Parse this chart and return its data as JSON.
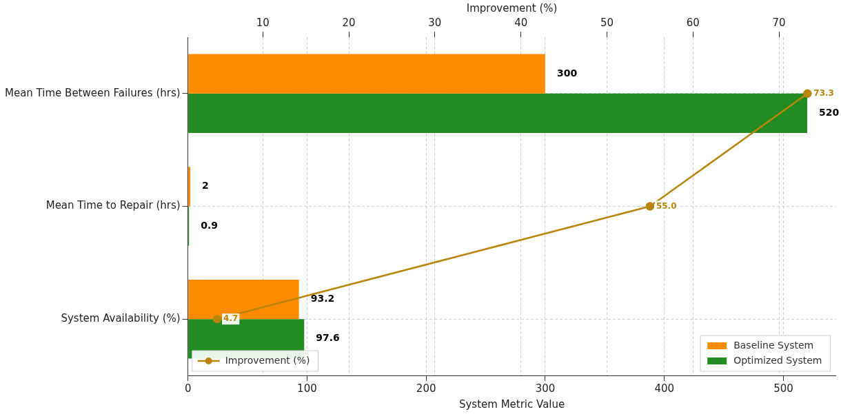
{
  "chart_data": {
    "type": "bar",
    "orientation": "horizontal",
    "xlabel": "System Metric Value",
    "x2label": "Improvement (%)",
    "categories": [
      "Mean Time Between Failures (hrs)",
      "Mean Time to Repair (hrs)",
      "System Availability (%)"
    ],
    "series": [
      {
        "name": "Baseline System",
        "color": "#ff8c00",
        "values": [
          300,
          2,
          93.2
        ],
        "value_labels": [
          "300",
          "2",
          "93.2"
        ]
      },
      {
        "name": "Optimized System",
        "color": "#228b22",
        "values": [
          520,
          0.9,
          97.6
        ],
        "value_labels": [
          "520",
          "0.9",
          "97.6"
        ]
      },
      {
        "name": "Improvement (%)",
        "type": "line",
        "axis": "x2",
        "color": "#b8860b",
        "values": [
          73.3,
          55.0,
          4.7
        ],
        "value_labels": [
          "73.3",
          "55.0",
          "4.7"
        ]
      }
    ],
    "xlim": [
      0,
      544
    ],
    "xticks": [
      0,
      100,
      200,
      300,
      400,
      500
    ],
    "x2lim": [
      1.3,
      76.6
    ],
    "x2ticks": [
      10,
      20,
      30,
      40,
      50,
      60,
      70
    ],
    "grid": true,
    "legend": "bottom right",
    "marker": "circle",
    "line_style": "solid"
  }
}
